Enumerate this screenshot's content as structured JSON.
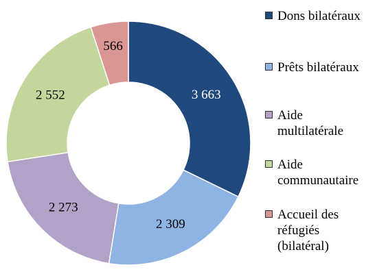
{
  "chart_data": {
    "type": "donut",
    "categories": [
      "Dons bilatéraux",
      "Prêts bilatéraux",
      "Aide multilatérale",
      "Aide communautaire",
      "Accueil des réfugiés (bilatéral)"
    ],
    "legend_labels": [
      "Dons bilatéraux",
      "Prêts bilatéraux",
      "Aide\nmultilatérale",
      "Aide\ncommunautaire",
      "Accueil des\nréfugiés\n(bilatéral)"
    ],
    "values": [
      3663,
      2309,
      2273,
      2552,
      566
    ],
    "data_labels": [
      "3 663",
      "2 309",
      "2 273",
      "2 552",
      "566"
    ],
    "colors": [
      "#1f497d",
      "#8eb4e3",
      "#b3a2c7",
      "#c3d69b",
      "#d99694"
    ],
    "label_colors": [
      "#ffffff",
      "#000000",
      "#000000",
      "#000000",
      "#000000"
    ],
    "start_angle_deg": 0,
    "direction": "clockwise",
    "legend_position": "right"
  }
}
